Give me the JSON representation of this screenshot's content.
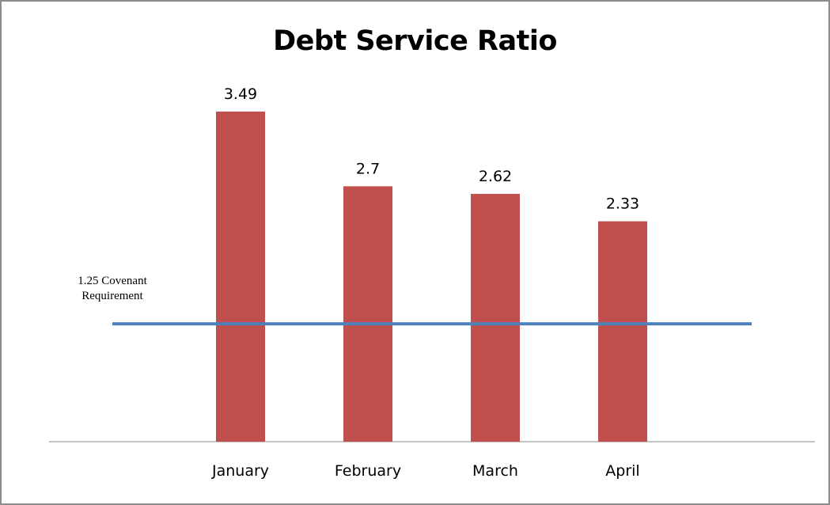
{
  "chart_data": {
    "type": "bar",
    "title": "Debt Service Ratio",
    "xlabel": "",
    "ylabel": "",
    "categories": [
      "January",
      "February",
      "March",
      "April"
    ],
    "values": [
      3.49,
      2.7,
      2.62,
      2.33
    ],
    "data_labels": [
      "3.49",
      "2.7",
      "2.62",
      "2.33"
    ],
    "ylim": [
      0,
      4
    ],
    "grid": false,
    "legend": "none",
    "bar_color": "#C0504D",
    "reference_line": {
      "value": 1.25,
      "label_lines": [
        "1.25 Covenant",
        "Requirement"
      ],
      "color": "#4F81BD"
    }
  }
}
